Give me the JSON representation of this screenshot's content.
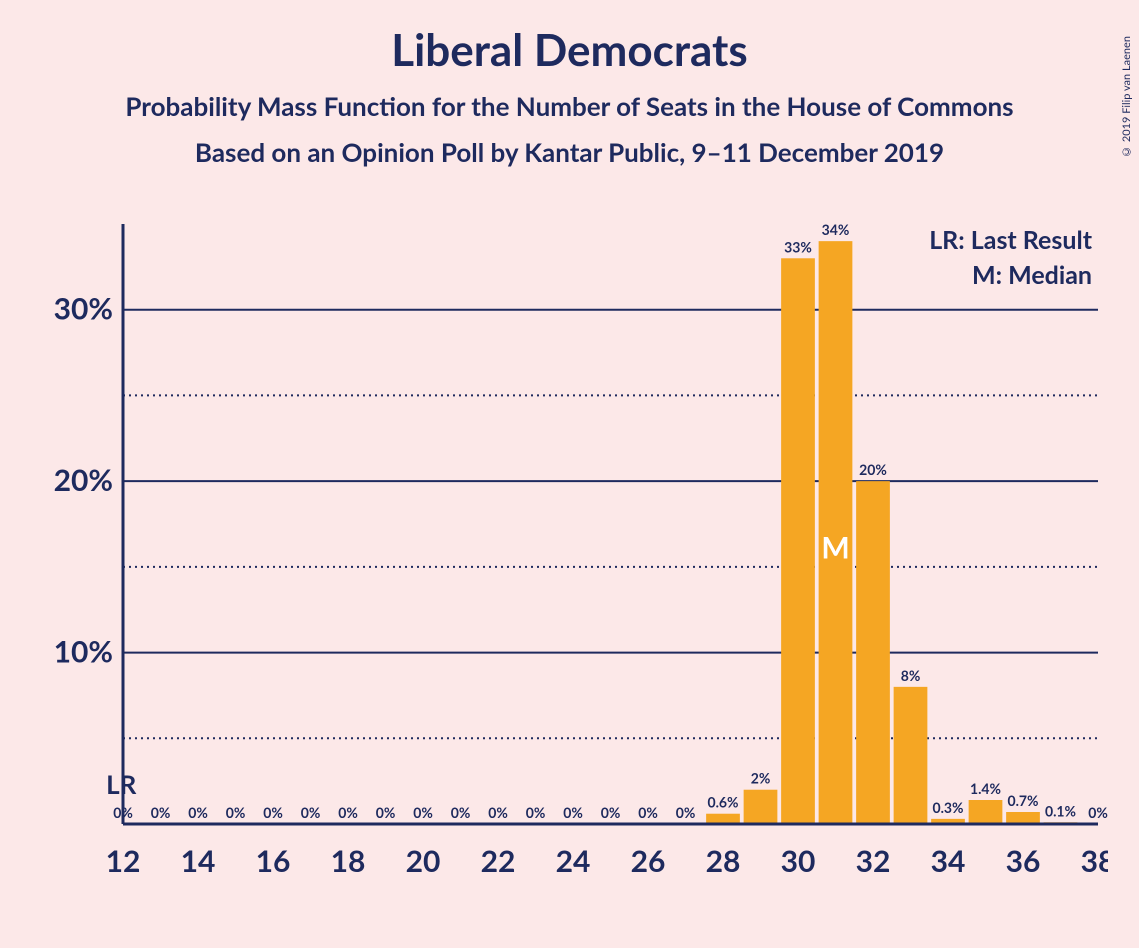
{
  "title": "Liberal Democrats",
  "subtitle1": "Probability Mass Function for the Number of Seats in the House of Commons",
  "subtitle2": "Based on an Opinion Poll by Kantar Public, 9–11 December 2019",
  "copyright": "© 2019 Filip van Laenen",
  "legend": {
    "lr": "LR: Last Result",
    "m": "M: Median"
  },
  "lr_marker": "LR",
  "median_marker": "M",
  "chart": {
    "type": "bar",
    "background_color": "#fce8e8",
    "bar_color": "#f5a623",
    "axis_color": "#1e2a5e",
    "grid_color": "#1e2a5e",
    "text_color": "#1e2a5e",
    "median_text_color": "#ffffff",
    "x_range": [
      12,
      38
    ],
    "x_tick_step": 2,
    "y_range": [
      0,
      35
    ],
    "y_ticks": [
      0,
      5,
      10,
      15,
      20,
      25,
      30
    ],
    "y_major": [
      10,
      20,
      30
    ],
    "y_minor": [
      5,
      15,
      25
    ],
    "bar_width": 0.9,
    "lr_x": 12,
    "median_x": 31,
    "data": [
      {
        "x": 12,
        "y": 0,
        "label": "0%"
      },
      {
        "x": 13,
        "y": 0,
        "label": "0%"
      },
      {
        "x": 14,
        "y": 0,
        "label": "0%"
      },
      {
        "x": 15,
        "y": 0,
        "label": "0%"
      },
      {
        "x": 16,
        "y": 0,
        "label": "0%"
      },
      {
        "x": 17,
        "y": 0,
        "label": "0%"
      },
      {
        "x": 18,
        "y": 0,
        "label": "0%"
      },
      {
        "x": 19,
        "y": 0,
        "label": "0%"
      },
      {
        "x": 20,
        "y": 0,
        "label": "0%"
      },
      {
        "x": 21,
        "y": 0,
        "label": "0%"
      },
      {
        "x": 22,
        "y": 0,
        "label": "0%"
      },
      {
        "x": 23,
        "y": 0,
        "label": "0%"
      },
      {
        "x": 24,
        "y": 0,
        "label": "0%"
      },
      {
        "x": 25,
        "y": 0,
        "label": "0%"
      },
      {
        "x": 26,
        "y": 0,
        "label": "0%"
      },
      {
        "x": 27,
        "y": 0,
        "label": "0%"
      },
      {
        "x": 28,
        "y": 0.6,
        "label": "0.6%"
      },
      {
        "x": 29,
        "y": 2,
        "label": "2%"
      },
      {
        "x": 30,
        "y": 33,
        "label": "33%"
      },
      {
        "x": 31,
        "y": 34,
        "label": "34%"
      },
      {
        "x": 32,
        "y": 20,
        "label": "20%"
      },
      {
        "x": 33,
        "y": 8,
        "label": "8%"
      },
      {
        "x": 34,
        "y": 0.3,
        "label": "0.3%"
      },
      {
        "x": 35,
        "y": 1.4,
        "label": "1.4%"
      },
      {
        "x": 36,
        "y": 0.7,
        "label": "0.7%"
      },
      {
        "x": 37,
        "y": 0.1,
        "label": "0.1%"
      },
      {
        "x": 38,
        "y": 0,
        "label": "0%"
      }
    ]
  }
}
